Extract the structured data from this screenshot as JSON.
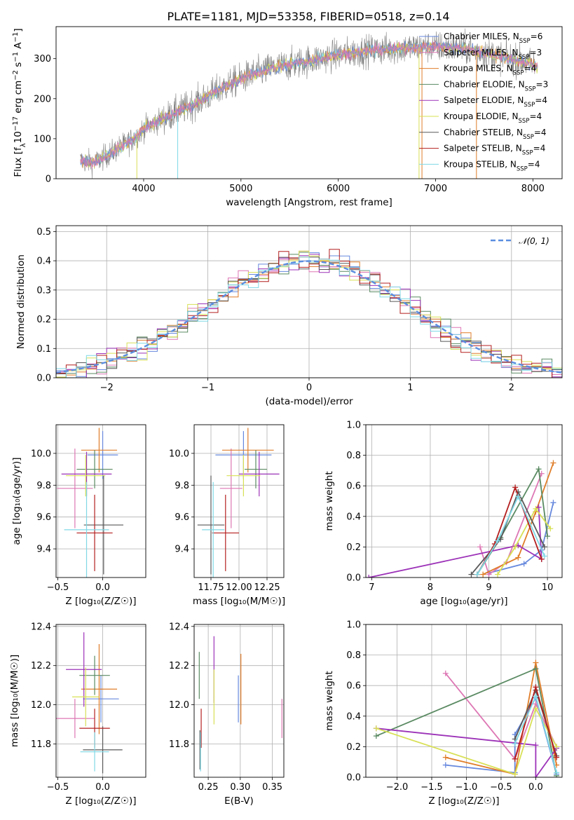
{
  "figure_title": "PLATE=1181, MJD=53358, FIBERID=0518, z=0.14",
  "colors": {
    "series": [
      "#6688dd",
      "#dd77b4",
      "#e07d29",
      "#5a8a62",
      "#9c32b8",
      "#d8e055",
      "#595959",
      "#b41f1f",
      "#7fd8e6"
    ],
    "model_line": "#808080",
    "gaussian": "#5b8ee0"
  },
  "chart_data": [
    {
      "id": "spectrum",
      "type": "line",
      "title": "PLATE=1181, MJD=53358, FIBERID=0518, z=0.14",
      "xlabel": "wavelength [Angstrom, rest frame]",
      "ylabel": "Flux [f_λ 10^-17 erg cm^-2 s^-1 A^-1]",
      "xlim": [
        3100,
        8300
      ],
      "ylim": [
        0,
        380
      ],
      "xticks": [
        4000,
        5000,
        6000,
        7000,
        8000
      ],
      "yticks": [
        0,
        100,
        200,
        300
      ],
      "legend_position": "upper right",
      "grid": false,
      "legend": [
        {
          "label": "Chabrier MILES, N",
          "sub": "SSP",
          "val": "=6"
        },
        {
          "label": "Salpeter MILES, N",
          "sub": "SSP",
          "val": "=3"
        },
        {
          "label": "Kroupa MILES, N",
          "sub": "SSP",
          "val": "=4"
        },
        {
          "label": "Chabrier ELODIE, N",
          "sub": "SSP",
          "val": "=3"
        },
        {
          "label": "Salpeter ELODIE, N",
          "sub": "SSP",
          "val": "=4"
        },
        {
          "label": "Kroupa ELODIE, N",
          "sub": "SSP",
          "val": "=4"
        },
        {
          "label": "Chabrier STELIB, N",
          "sub": "SSP",
          "val": "=4"
        },
        {
          "label": "Salpeter STELIB, N",
          "sub": "SSP",
          "val": "=4"
        },
        {
          "label": "Kroupa STELIB, N",
          "sub": "SSP",
          "val": "=4"
        }
      ],
      "continuum": {
        "x": [
          3350,
          3500,
          3700,
          3900,
          4000,
          4200,
          4500,
          4800,
          5000,
          5300,
          5600,
          6000,
          6300,
          6600,
          7000,
          7300,
          7600,
          8000,
          8050
        ],
        "y": [
          45,
          40,
          70,
          100,
          125,
          150,
          185,
          225,
          250,
          275,
          290,
          310,
          320,
          325,
          330,
          325,
          310,
          285,
          280
        ]
      }
    },
    {
      "id": "residuals",
      "type": "histogram",
      "xlabel": "(data-model)/error",
      "ylabel": "Normed distribution",
      "xlim": [
        -2.5,
        2.5
      ],
      "ylim": [
        0,
        0.52
      ],
      "xticks": [
        -2,
        -1,
        0,
        1,
        2
      ],
      "yticks": [
        0.0,
        0.1,
        0.2,
        0.3,
        0.4,
        0.5
      ],
      "legend_position": "upper right",
      "legend": [
        "𝒩(0, 1)"
      ],
      "grid": true,
      "bin_width": 0.1,
      "bin_start": -2.5
    },
    {
      "id": "age_vs_Z",
      "type": "errorbar",
      "xlabel": "Z [log₁₀(Z/Z☉)]",
      "ylabel": "age  [log₁₀(age/yr)]",
      "xlim": [
        -0.52,
        0.48
      ],
      "ylim": [
        9.22,
        10.18
      ],
      "xticks": [
        -0.5,
        0.0
      ],
      "yticks": [
        9.4,
        9.6,
        9.8,
        10.0
      ],
      "grid": true,
      "points": [
        {
          "x": 0.0,
          "xerr": 0.17,
          "y": 9.99,
          "yerr": 0.15
        },
        {
          "x": -0.31,
          "xerr": 0.2,
          "y": 9.78,
          "yerr": 0.25
        },
        {
          "x": -0.04,
          "xerr": 0.2,
          "y": 10.02,
          "yerr": 0.14
        },
        {
          "x": -0.09,
          "xerr": 0.2,
          "y": 9.9,
          "yerr": 0.12
        },
        {
          "x": -0.18,
          "xerr": 0.28,
          "y": 9.87,
          "yerr": 0.14
        },
        {
          "x": -0.19,
          "xerr": 0.22,
          "y": 9.86,
          "yerr": 0.13
        },
        {
          "x": 0.01,
          "xerr": 0.22,
          "y": 9.55,
          "yerr": 0.31
        },
        {
          "x": -0.09,
          "xerr": 0.2,
          "y": 9.5,
          "yerr": 0.24
        },
        {
          "x": -0.18,
          "xerr": 0.25,
          "y": 9.52,
          "yerr": 0.3
        }
      ]
    },
    {
      "id": "age_vs_mass",
      "type": "errorbar",
      "xlabel": "mass [log₁₀(M/M☉)]",
      "ylabel": "",
      "xlim": [
        11.6,
        12.4
      ],
      "ylim": [
        9.22,
        10.18
      ],
      "xticks": [
        11.75,
        12.0,
        12.25
      ],
      "yticks": [
        9.4,
        9.6,
        9.8,
        10.0
      ],
      "grid": true,
      "points": [
        {
          "x": 12.04,
          "xerr": 0.25,
          "y": 9.99,
          "yerr": 0.15
        },
        {
          "x": 11.93,
          "xerr": 0.1,
          "y": 9.78,
          "yerr": 0.25
        },
        {
          "x": 12.08,
          "xerr": 0.23,
          "y": 10.02,
          "yerr": 0.14
        },
        {
          "x": 12.15,
          "xerr": 0.1,
          "y": 9.9,
          "yerr": 0.12
        },
        {
          "x": 12.18,
          "xerr": 0.18,
          "y": 9.87,
          "yerr": 0.14
        },
        {
          "x": 12.04,
          "xerr": 0.15,
          "y": 9.86,
          "yerr": 0.13
        },
        {
          "x": 11.75,
          "xerr": 0.12,
          "y": 9.55,
          "yerr": 0.31
        },
        {
          "x": 11.88,
          "xerr": 0.12,
          "y": 9.5,
          "yerr": 0.24
        },
        {
          "x": 11.77,
          "xerr": 0.1,
          "y": 9.52,
          "yerr": 0.3
        }
      ]
    },
    {
      "id": "massweight_vs_age",
      "type": "line",
      "xlabel": "age  [log₁₀(age/yr)]",
      "ylabel": "mass weight",
      "xlim": [
        6.9,
        10.25
      ],
      "ylim": [
        0,
        1
      ],
      "xticks": [
        7,
        8,
        9,
        10
      ],
      "yticks": [
        0.0,
        0.2,
        0.4,
        0.6,
        0.8,
        1.0
      ],
      "grid": true,
      "series": [
        {
          "x": [
            9.0,
            9.6,
            9.9,
            10.1
          ],
          "y": [
            0.03,
            0.09,
            0.18,
            0.49
          ]
        },
        {
          "x": [
            8.85,
            9.0,
            9.3,
            9.9
          ],
          "y": [
            0.2,
            0.02,
            0.1,
            0.68
          ]
        },
        {
          "x": [
            8.9,
            9.5,
            9.8,
            10.1
          ],
          "y": [
            0.02,
            0.13,
            0.43,
            0.75
          ]
        },
        {
          "x": [
            8.8,
            9.2,
            9.85,
            10.0
          ],
          "y": [
            0.02,
            0.26,
            0.71,
            0.27
          ]
        },
        {
          "x": [
            6.95,
            9.5,
            9.9,
            9.85
          ],
          "y": [
            0.0,
            0.21,
            0.12,
            0.46
          ]
        },
        {
          "x": [
            9.15,
            9.45,
            9.8,
            10.05
          ],
          "y": [
            0.02,
            0.2,
            0.45,
            0.32
          ]
        },
        {
          "x": [
            8.7,
            9.2,
            9.5,
            9.95
          ],
          "y": [
            0.02,
            0.25,
            0.56,
            0.2
          ]
        },
        {
          "x": [
            8.8,
            9.1,
            9.45,
            9.9
          ],
          "y": [
            0.02,
            0.22,
            0.59,
            0.12
          ]
        },
        {
          "x": [
            8.8,
            9.15,
            9.5,
            9.95
          ],
          "y": [
            0.02,
            0.24,
            0.53,
            0.14
          ]
        }
      ]
    },
    {
      "id": "mass_vs_Z",
      "type": "errorbar",
      "xlabel": "Z [log₁₀(Z/Z☉)]",
      "ylabel": "mass [log₁₀(M/M☉)]",
      "xlim": [
        -0.52,
        0.48
      ],
      "ylim": [
        11.63,
        12.41
      ],
      "xticks": [
        -0.5,
        0.0
      ],
      "yticks": [
        11.8,
        12.0,
        12.2,
        12.4
      ],
      "grid": true,
      "points": [
        {
          "x": -0.02,
          "xerr": 0.2,
          "y": 12.03,
          "yerr": 0.12
        },
        {
          "x": -0.31,
          "xerr": 0.22,
          "y": 11.93,
          "yerr": 0.1
        },
        {
          "x": -0.04,
          "xerr": 0.2,
          "y": 12.08,
          "yerr": 0.23
        },
        {
          "x": -0.09,
          "xerr": 0.17,
          "y": 12.15,
          "yerr": 0.1
        },
        {
          "x": -0.21,
          "xerr": 0.2,
          "y": 12.18,
          "yerr": 0.19
        },
        {
          "x": -0.19,
          "xerr": 0.15,
          "y": 12.04,
          "yerr": 0.15
        },
        {
          "x": 0.0,
          "xerr": 0.22,
          "y": 11.77,
          "yerr": 0.12
        },
        {
          "x": -0.09,
          "xerr": 0.17,
          "y": 11.88,
          "yerr": 0.1
        },
        {
          "x": -0.09,
          "xerr": 0.16,
          "y": 11.76,
          "yerr": 0.1
        }
      ]
    },
    {
      "id": "mass_vs_ebv",
      "type": "errorbar",
      "xlabel": "E(B-V)",
      "ylabel": "",
      "xlim": [
        0.228,
        0.368
      ],
      "ylim": [
        11.63,
        12.41
      ],
      "xticks": [
        0.25,
        0.3,
        0.35
      ],
      "yticks": [
        11.8,
        12.0,
        12.2,
        12.4
      ],
      "grid": true,
      "points": [
        {
          "x": 0.297,
          "y": 12.03,
          "yerr": 0.12
        },
        {
          "x": 0.365,
          "y": 11.93,
          "yerr": 0.1
        },
        {
          "x": 0.301,
          "y": 12.08,
          "yerr": 0.18
        },
        {
          "x": 0.236,
          "y": 12.15,
          "yerr": 0.12
        },
        {
          "x": 0.259,
          "y": 12.18,
          "yerr": 0.17
        },
        {
          "x": 0.259,
          "y": 12.04,
          "yerr": 0.14
        },
        {
          "x": 0.237,
          "y": 11.77,
          "yerr": 0.1
        },
        {
          "x": 0.239,
          "y": 11.88,
          "yerr": 0.1
        },
        {
          "x": 0.238,
          "y": 11.76,
          "yerr": 0.1
        }
      ]
    },
    {
      "id": "massweight_vs_Z",
      "type": "line",
      "xlabel": "Z [log₁₀(Z/Z☉)]",
      "ylabel": "mass weight",
      "xlim": [
        -2.45,
        0.38
      ],
      "ylim": [
        0,
        1
      ],
      "xticks": [
        -2.0,
        -1.5,
        -1.0,
        -0.5,
        0.0
      ],
      "yticks": [
        0.0,
        0.2,
        0.4,
        0.6,
        0.8,
        1.0
      ],
      "grid": true,
      "series": [
        {
          "x": [
            -1.3,
            -0.3,
            -0.3,
            0.0,
            0.3
          ],
          "y": [
            0.08,
            0.03,
            0.28,
            0.52,
            0.02
          ]
        },
        {
          "x": [
            -1.3,
            -0.3,
            0.0,
            0.3
          ],
          "y": [
            0.68,
            0.12,
            0.48,
            0.2
          ]
        },
        {
          "x": [
            -1.3,
            -0.3,
            0.0,
            0.3
          ],
          "y": [
            0.13,
            0.02,
            0.75,
            0.08
          ]
        },
        {
          "x": [
            -2.3,
            0.0,
            0.3
          ],
          "y": [
            0.27,
            0.71,
            0.01
          ]
        },
        {
          "x": [
            -2.3,
            0.0,
            0.0,
            0.3
          ],
          "y": [
            0.32,
            0.21,
            0.0,
            0.19
          ]
        },
        {
          "x": [
            -2.3,
            -0.3,
            0.0,
            0.3
          ],
          "y": [
            0.32,
            0.02,
            0.45,
            0.2
          ]
        },
        {
          "x": [
            -0.3,
            0.0,
            0.3
          ],
          "y": [
            0.25,
            0.57,
            0.14
          ]
        },
        {
          "x": [
            -0.3,
            0.0,
            0.3
          ],
          "y": [
            0.12,
            0.59,
            0.13
          ]
        },
        {
          "x": [
            -0.3,
            0.0,
            0.3
          ],
          "y": [
            0.22,
            0.53,
            0.03
          ]
        }
      ]
    }
  ]
}
